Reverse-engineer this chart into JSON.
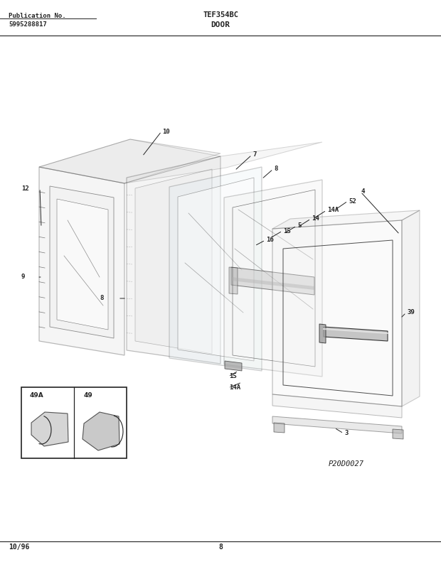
{
  "bg_color": "#ffffff",
  "line_color": "#222222",
  "pub_no_label": "Publication No.",
  "pub_no": "5995288817",
  "model": "TEF354BC",
  "section": "DOOR",
  "footer_date": "10/96",
  "footer_page": "8",
  "diagram_code": "P20D0027",
  "figsize": [
    6.2,
    7.91
  ],
  "dpi": 100
}
